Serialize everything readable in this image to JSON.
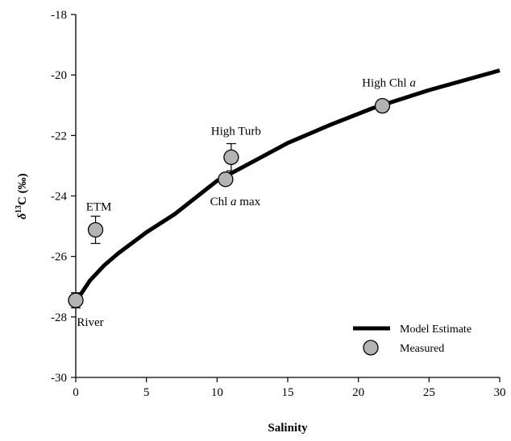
{
  "chart_data": {
    "type": "line",
    "xlabel": "Salinity",
    "ylabel": {
      "main": "δ",
      "sup": "13",
      "rest": "C (‰)"
    },
    "xlim": [
      0,
      30
    ],
    "ylim": [
      -30,
      -18
    ],
    "xticks": [
      0,
      5,
      10,
      15,
      20,
      25,
      30
    ],
    "yticks": [
      -30,
      -28,
      -26,
      -24,
      -22,
      -20,
      -18
    ],
    "grid": false,
    "legend_position": "bottom-right",
    "series": [
      {
        "name": "Model Estimate",
        "kind": "line",
        "color": "#000000",
        "x": [
          0,
          1,
          2,
          3,
          5,
          7,
          10,
          12,
          15,
          18,
          21,
          25,
          30
        ],
        "y": [
          -27.5,
          -26.8,
          -26.3,
          -25.9,
          -25.2,
          -24.6,
          -23.5,
          -23.0,
          -22.25,
          -21.65,
          -21.1,
          -20.5,
          -19.85
        ]
      },
      {
        "name": "Measured",
        "kind": "scatter",
        "color": "#b3b3b3",
        "points": [
          {
            "x": 0.0,
            "y": -27.45,
            "err": 0.25,
            "label": "River"
          },
          {
            "x": 1.4,
            "y": -25.12,
            "err": 0.45,
            "label": "ETM"
          },
          {
            "x": 10.6,
            "y": -23.45,
            "err": 0.0,
            "label": "Chl a max"
          },
          {
            "x": 11.0,
            "y": -22.72,
            "err": 0.45,
            "label": "High Turb"
          },
          {
            "x": 21.7,
            "y": -21.02,
            "err": 0.2,
            "label": "High Chl a"
          }
        ]
      }
    ],
    "annotations": [
      {
        "parts": [
          "River"
        ],
        "italic_index": -1
      },
      {
        "parts": [
          "ETM"
        ],
        "italic_index": -1
      },
      {
        "parts": [
          "Chl ",
          "a",
          " max"
        ],
        "italic_index": 1
      },
      {
        "parts": [
          "High Turb"
        ],
        "italic_index": -1
      },
      {
        "parts": [
          "High Chl ",
          "a"
        ],
        "italic_index": 1
      }
    ]
  }
}
